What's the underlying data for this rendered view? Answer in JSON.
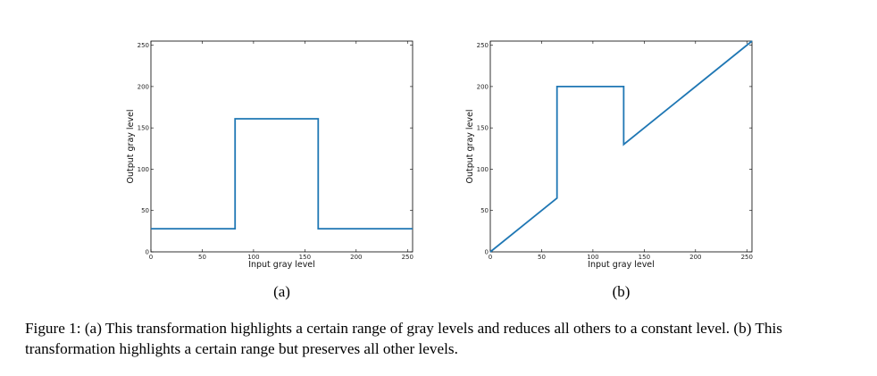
{
  "chart_data": [
    {
      "type": "line",
      "panel_label": "(a)",
      "xlabel": "Input gray level",
      "ylabel": "Output gray level",
      "xlim": [
        0,
        255
      ],
      "ylim": [
        0,
        255
      ],
      "xticks": [
        0,
        50,
        100,
        150,
        200,
        250
      ],
      "yticks": [
        0,
        50,
        100,
        150,
        200,
        250
      ],
      "grid": false,
      "color": "#1f77b4",
      "x": [
        0,
        82,
        82,
        163,
        163,
        255
      ],
      "y": [
        28,
        28,
        161,
        161,
        28,
        28
      ]
    },
    {
      "type": "line",
      "panel_label": "(b)",
      "xlabel": "Input gray level",
      "ylabel": "Output gray level",
      "xlim": [
        0,
        255
      ],
      "ylim": [
        0,
        255
      ],
      "xticks": [
        0,
        50,
        100,
        150,
        200,
        250
      ],
      "yticks": [
        0,
        50,
        100,
        150,
        200,
        250
      ],
      "grid": false,
      "color": "#1f77b4",
      "x": [
        0,
        65,
        65,
        130,
        130,
        255
      ],
      "y": [
        0,
        65,
        200,
        200,
        130,
        255
      ]
    }
  ],
  "caption": "Figure 1: (a) This transformation highlights a certain range of gray levels and reduces all others to a constant level. (b) This transformation highlights a certain range but preserves all other levels."
}
